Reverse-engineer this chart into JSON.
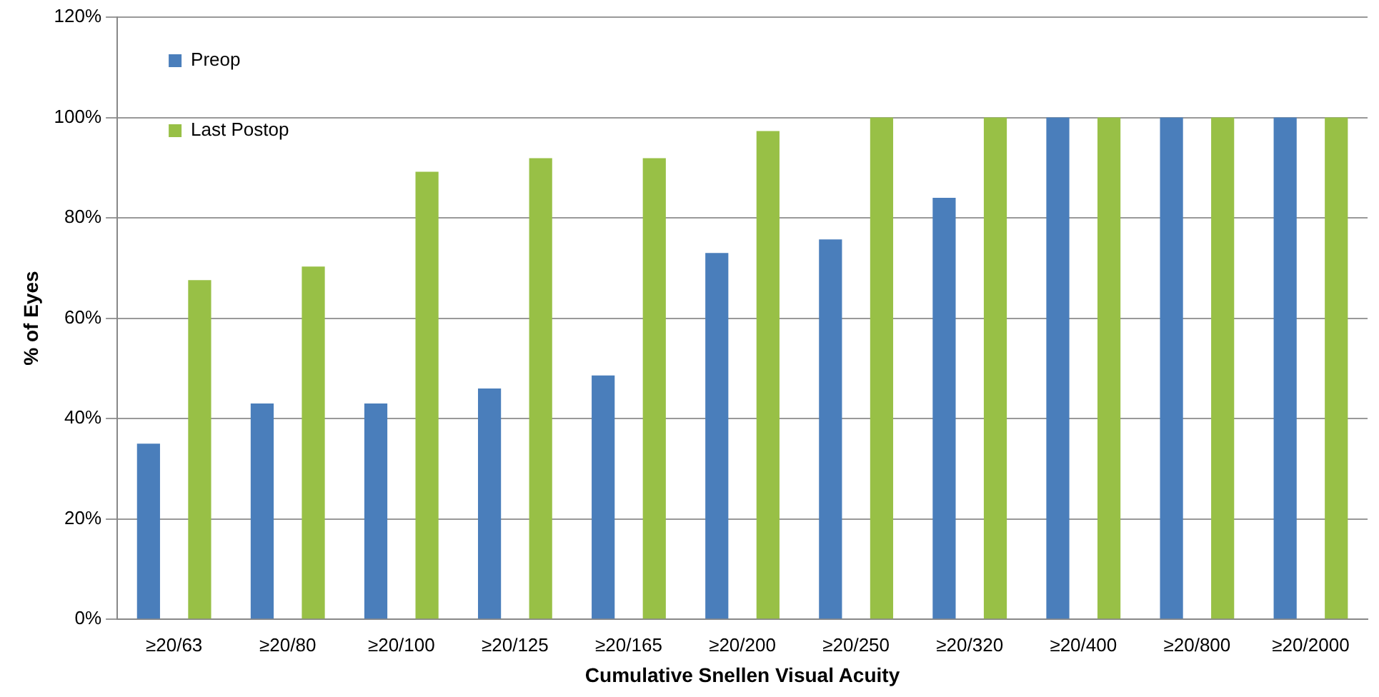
{
  "chart_data": {
    "type": "bar",
    "xlabel": "Cumulative Snellen Visual Acuity",
    "ylabel": "% of Eyes",
    "categories": [
      "≥20/63",
      "≥20/80",
      "≥20/100",
      "≥20/125",
      "≥20/165",
      "≥20/200",
      "≥20/250",
      "≥20/320",
      "≥20/400",
      "≥20/800",
      "≥20/2000"
    ],
    "series": [
      {
        "name": "Preop",
        "color": "#4a7ebb",
        "values": [
          35,
          43,
          43,
          46,
          48.6,
          73,
          75.7,
          84,
          100,
          100,
          100
        ]
      },
      {
        "name": "Last Postop",
        "color": "#98c046",
        "values": [
          67.6,
          70.3,
          89.2,
          91.9,
          91.9,
          97.3,
          100,
          100,
          100,
          100,
          100
        ]
      }
    ],
    "ylim": [
      0,
      120
    ],
    "yticks": [
      {
        "value": 0,
        "label": "0%"
      },
      {
        "value": 20,
        "label": "20%"
      },
      {
        "value": 40,
        "label": "40%"
      },
      {
        "value": 60,
        "label": "60%"
      },
      {
        "value": 80,
        "label": "80%"
      },
      {
        "value": 100,
        "label": "100%"
      },
      {
        "value": 120,
        "label": "120%"
      }
    ],
    "grid": "y",
    "legend": "top left"
  }
}
